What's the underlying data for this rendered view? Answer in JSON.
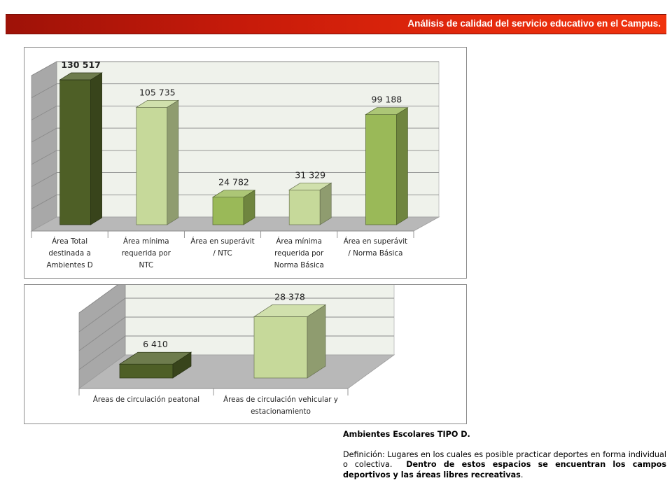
{
  "header": {
    "title": "Análisis de calidad del servicio educativo en el Campus.",
    "colors": [
      "#9e1208",
      "#f0330e"
    ]
  },
  "chart_data": [
    {
      "type": "bar",
      "categories": [
        [
          "Área Total",
          "destinada a",
          "Ambientes D"
        ],
        [
          "Área mínima",
          "requerida por",
          "NTC"
        ],
        [
          "Área en superávit",
          "/ NTC"
        ],
        [
          "Área mínima",
          "requerida por",
          "Norma Básica"
        ],
        [
          "Área en superávit",
          "/ Norma Básica"
        ]
      ],
      "values": [
        130517,
        105735,
        24782,
        31329,
        99188
      ],
      "value_labels": [
        "130 517",
        "105 735",
        "24 782",
        "31 329",
        "99 188"
      ],
      "bar_colors": [
        "#4e5f26",
        "#c6d99a",
        "#9ab958",
        "#c6d99a",
        "#9ab958"
      ],
      "bold_labels": [
        true,
        false,
        false,
        false,
        false
      ],
      "ylim": [
        0,
        140000
      ],
      "grid": true,
      "legend": "none"
    },
    {
      "type": "bar",
      "categories": [
        [
          "Áreas de circulación peatonal"
        ],
        [
          "Áreas de circulación vehicular y",
          "estacionamiento"
        ]
      ],
      "values": [
        6410,
        28378
      ],
      "value_labels": [
        "6 410",
        "28 378"
      ],
      "bar_colors": [
        "#4e5f26",
        "#c6d99a"
      ],
      "bold_labels": [
        false,
        false
      ],
      "ylim": [
        0,
        35000
      ],
      "grid": true,
      "legend": "none"
    }
  ],
  "definition": {
    "heading": "Ambientes Escolares TIPO D.",
    "text_plain": "Definición: Lugares en los cuales es posible practicar deportes en forma individual o colectiva.",
    "text_bold": "Dentro de estos espacios se encuentran los campos deportivos y las áreas libres recreativas",
    "text_end": "."
  }
}
